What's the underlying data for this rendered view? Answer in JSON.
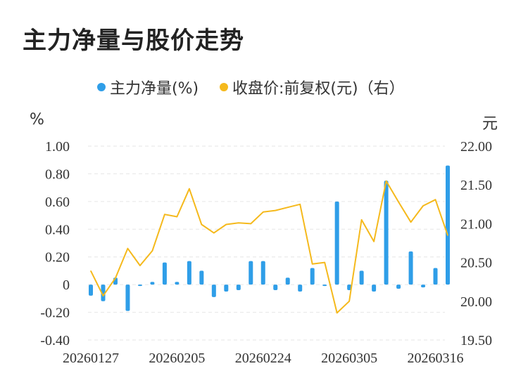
{
  "title": "主力净量与股价走势",
  "colors": {
    "bar": "#2f9ee8",
    "line": "#f5b91c",
    "grid": "#e6e6e6",
    "text": "#333333"
  },
  "chart_data": {
    "type": "bar+line",
    "title": "主力净量与股价走势",
    "legend": [
      {
        "name": "主力净量(%)",
        "color": "#2f9ee8",
        "marker": "dot"
      },
      {
        "name": "收盘价:前复权(元)（右）",
        "color": "#f5b91c",
        "marker": "dot"
      }
    ],
    "left_axis": {
      "unit": "%",
      "ticks": [
        "1.00",
        "0.80",
        "0.60",
        "0.40",
        "0.20",
        "0",
        "-0.20",
        "-0.40"
      ],
      "range": [
        -0.4,
        1.0
      ]
    },
    "right_axis": {
      "unit": "元",
      "ticks": [
        "22.00",
        "21.50",
        "21.00",
        "20.50",
        "20.00",
        "19.50"
      ],
      "range": [
        19.5,
        22.0
      ]
    },
    "x_tick_labels": [
      "20260127",
      "20260205",
      "20260224",
      "20260305",
      "20260316"
    ],
    "x_tick_index": [
      0,
      7,
      14,
      21,
      28
    ],
    "series": [
      {
        "name": "主力净量(%)",
        "type": "bar",
        "values": [
          -0.08,
          -0.12,
          0.05,
          -0.19,
          -0.01,
          0.02,
          0.16,
          0.02,
          0.17,
          0.1,
          -0.09,
          -0.05,
          -0.04,
          0.17,
          0.17,
          -0.04,
          0.05,
          -0.05,
          0.12,
          -0.01,
          0.6,
          -0.04,
          0.1,
          -0.05,
          0.75,
          -0.03,
          0.24,
          -0.02,
          0.12,
          0.86
        ]
      },
      {
        "name": "收盘价:前复权(元)（右）",
        "type": "line",
        "values": [
          20.39,
          20.07,
          20.3,
          20.68,
          20.46,
          20.65,
          21.12,
          21.09,
          21.45,
          20.99,
          20.88,
          20.99,
          21.01,
          21.0,
          21.15,
          21.17,
          21.21,
          21.25,
          20.48,
          20.5,
          19.85,
          20.0,
          21.05,
          20.77,
          21.55,
          21.28,
          21.02,
          21.23,
          21.31,
          20.85
        ]
      }
    ]
  }
}
